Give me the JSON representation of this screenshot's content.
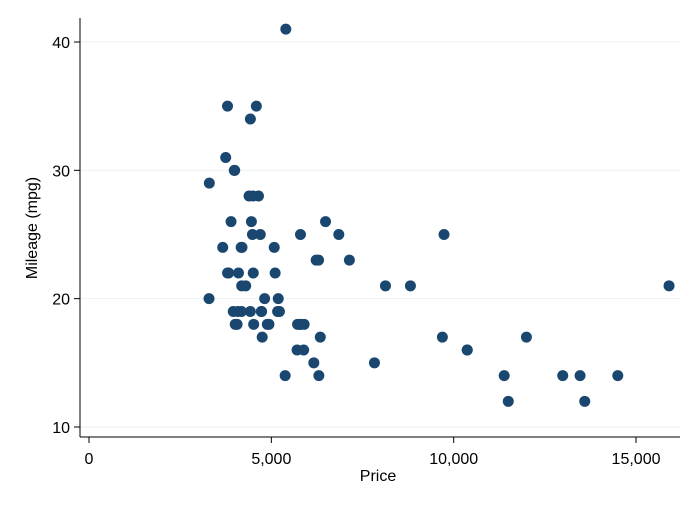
{
  "chart_data": {
    "type": "scatter",
    "x_label": "Price",
    "y_label": "Mileage (mpg)",
    "color": "#1a476f",
    "grid": true,
    "x": [
      4099,
      4749,
      3799,
      4816,
      7827,
      5788,
      4453,
      5189,
      10372,
      4082,
      11385,
      14500,
      15906,
      3299,
      5705,
      4504,
      5104,
      3667,
      3955,
      3984,
      4010,
      5886,
      6342,
      4389,
      4187,
      11497,
      13594,
      13466,
      3829,
      5379,
      6165,
      4516,
      6303,
      3291,
      8814,
      5172,
      4733,
      4890,
      4181,
      4195,
      10371,
      4647,
      4425,
      4482,
      6486,
      4060,
      5798,
      4934,
      5222,
      4723,
      4424,
      4172,
      9690,
      6295,
      9735,
      6229,
      4589,
      5079,
      8129,
      4296,
      5799,
      4499,
      3995,
      12990,
      3895,
      3798,
      5899,
      3748,
      5719,
      7140,
      5397,
      4697,
      6850,
      11995
    ],
    "values": [
      22,
      17,
      22,
      20,
      15,
      18,
      26,
      20,
      16,
      19,
      14,
      14,
      21,
      29,
      16,
      22,
      22,
      24,
      19,
      30,
      18,
      16,
      17,
      28,
      21,
      12,
      12,
      14,
      22,
      14,
      15,
      18,
      14,
      20,
      21,
      19,
      19,
      18,
      19,
      24,
      16,
      28,
      34,
      25,
      26,
      18,
      18,
      18,
      19,
      19,
      19,
      24,
      17,
      23,
      25,
      23,
      35,
      24,
      21,
      21,
      25,
      28,
      30,
      14,
      26,
      35,
      18,
      31,
      18,
      23,
      41,
      25,
      25,
      17
    ],
    "xlim": [
      -247,
      16206
    ],
    "ylim": [
      9.22,
      41.87
    ],
    "xticks": [
      0,
      {
        "value": 5000,
        "label": "5,000"
      },
      {
        "value": 10000,
        "label": "10,000"
      },
      {
        "value": 15000,
        "label": "15,000"
      }
    ],
    "yticks": [
      10,
      20,
      30,
      40
    ]
  }
}
